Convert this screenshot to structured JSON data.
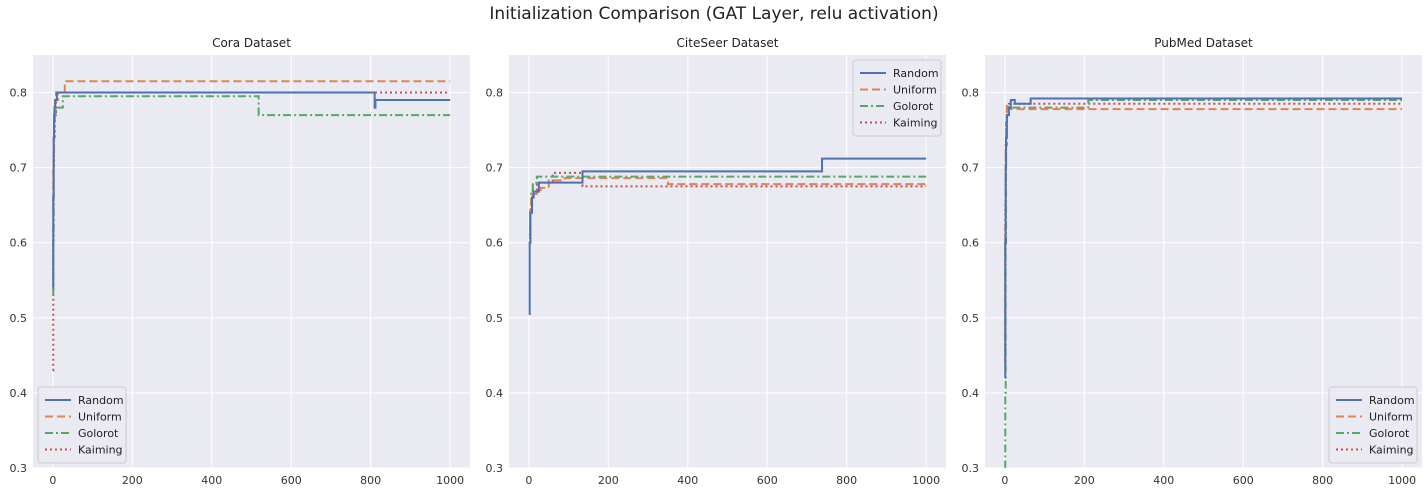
{
  "figure_title": "Initialization Comparison  (GAT Layer, relu activation)",
  "colors": {
    "Random": "#4c72b0",
    "Uniform": "#dd8452",
    "Golorot": "#55a868",
    "Kaiming": "#c44e52",
    "plot_bg": "#eaeaf2",
    "grid": "#ffffff"
  },
  "chart_data": [
    {
      "type": "line",
      "title": "Cora Dataset",
      "xlabel": "",
      "ylabel": "",
      "xlim": [
        -50,
        1050
      ],
      "ylim": [
        0.3,
        0.85
      ],
      "xticks": [
        0,
        200,
        400,
        600,
        800,
        1000
      ],
      "yticks": [
        0.3,
        0.4,
        0.5,
        0.6,
        0.7,
        0.8
      ],
      "legend_loc": "lower-left",
      "series": [
        {
          "name": "Random",
          "style": "solid",
          "x": [
            0,
            1,
            2,
            3,
            4,
            6,
            8,
            10,
            12,
            808,
            810,
            812,
            1000
          ],
          "y": [
            0.54,
            0.66,
            0.74,
            0.77,
            0.78,
            0.79,
            0.79,
            0.8,
            0.8,
            0.8,
            0.78,
            0.79,
            0.79
          ]
        },
        {
          "name": "Uniform",
          "style": "dashed",
          "x": [
            0,
            1,
            2,
            3,
            5,
            8,
            30,
            1000
          ],
          "y": [
            0.64,
            0.7,
            0.72,
            0.76,
            0.79,
            0.8,
            0.815,
            0.815
          ]
        },
        {
          "name": "Golorot",
          "style": "dashdot",
          "x": [
            0,
            1,
            2,
            3,
            5,
            8,
            25,
            515,
            518,
            1000
          ],
          "y": [
            0.53,
            0.62,
            0.72,
            0.76,
            0.77,
            0.78,
            0.795,
            0.795,
            0.77,
            0.77
          ]
        },
        {
          "name": "Kaiming",
          "style": "dotted",
          "x": [
            0,
            1,
            2,
            3,
            5,
            8,
            12,
            1000
          ],
          "y": [
            0.43,
            0.6,
            0.7,
            0.74,
            0.77,
            0.79,
            0.8,
            0.8
          ]
        }
      ]
    },
    {
      "type": "line",
      "title": "CiteSeer Dataset",
      "xlabel": "",
      "ylabel": "",
      "xlim": [
        -50,
        1050
      ],
      "ylim": [
        0.3,
        0.85
      ],
      "xticks": [
        0,
        200,
        400,
        600,
        800,
        1000
      ],
      "yticks": [
        0.3,
        0.4,
        0.5,
        0.6,
        0.7,
        0.8
      ],
      "legend_loc": "upper-right",
      "series": [
        {
          "name": "Random",
          "style": "solid",
          "x": [
            0,
            2,
            4,
            8,
            12,
            20,
            25,
            135,
            738,
            1000
          ],
          "y": [
            0.505,
            0.6,
            0.64,
            0.66,
            0.668,
            0.668,
            0.68,
            0.695,
            0.712,
            0.712
          ]
        },
        {
          "name": "Uniform",
          "style": "dashed",
          "x": [
            0,
            3,
            6,
            10,
            20,
            30,
            50,
            90,
            350,
            1000
          ],
          "y": [
            0.62,
            0.65,
            0.66,
            0.665,
            0.67,
            0.673,
            0.683,
            0.686,
            0.678,
            0.678
          ]
        },
        {
          "name": "Golorot",
          "style": "dashdot",
          "x": [
            0,
            3,
            6,
            10,
            20,
            50,
            70,
            1000
          ],
          "y": [
            0.61,
            0.64,
            0.67,
            0.68,
            0.688,
            0.688,
            0.688,
            0.688
          ]
        },
        {
          "name": "Kaiming",
          "style": "dotted",
          "x": [
            0,
            3,
            6,
            10,
            20,
            60,
            135,
            1000
          ],
          "y": [
            0.6,
            0.64,
            0.66,
            0.67,
            0.68,
            0.693,
            0.675,
            0.675
          ]
        }
      ]
    },
    {
      "type": "line",
      "title": "PubMed Dataset",
      "xlabel": "",
      "ylabel": "",
      "xlim": [
        -50,
        1050
      ],
      "ylim": [
        0.3,
        0.85
      ],
      "xticks": [
        0,
        200,
        400,
        600,
        800,
        1000
      ],
      "yticks": [
        0.3,
        0.4,
        0.5,
        0.6,
        0.7,
        0.8
      ],
      "legend_loc": "lower-right",
      "series": [
        {
          "name": "Random",
          "style": "solid",
          "x": [
            0,
            1,
            2,
            3,
            5,
            10,
            15,
            25,
            65,
            1000
          ],
          "y": [
            0.42,
            0.6,
            0.7,
            0.74,
            0.77,
            0.78,
            0.79,
            0.785,
            0.792,
            0.792
          ]
        },
        {
          "name": "Uniform",
          "style": "dashed",
          "x": [
            0,
            1,
            2,
            3,
            5,
            8,
            1000
          ],
          "y": [
            0.44,
            0.62,
            0.72,
            0.76,
            0.785,
            0.778,
            0.778
          ]
        },
        {
          "name": "Golorot",
          "style": "dashdot",
          "x": [
            0,
            1,
            2,
            3,
            5,
            10,
            210,
            1000
          ],
          "y": [
            0.3,
            0.4,
            0.6,
            0.73,
            0.77,
            0.78,
            0.79,
            0.79
          ]
        },
        {
          "name": "Kaiming",
          "style": "dotted",
          "x": [
            0,
            1,
            2,
            3,
            5,
            10,
            1000
          ],
          "y": [
            0.45,
            0.65,
            0.73,
            0.76,
            0.78,
            0.785,
            0.785
          ]
        }
      ]
    }
  ]
}
